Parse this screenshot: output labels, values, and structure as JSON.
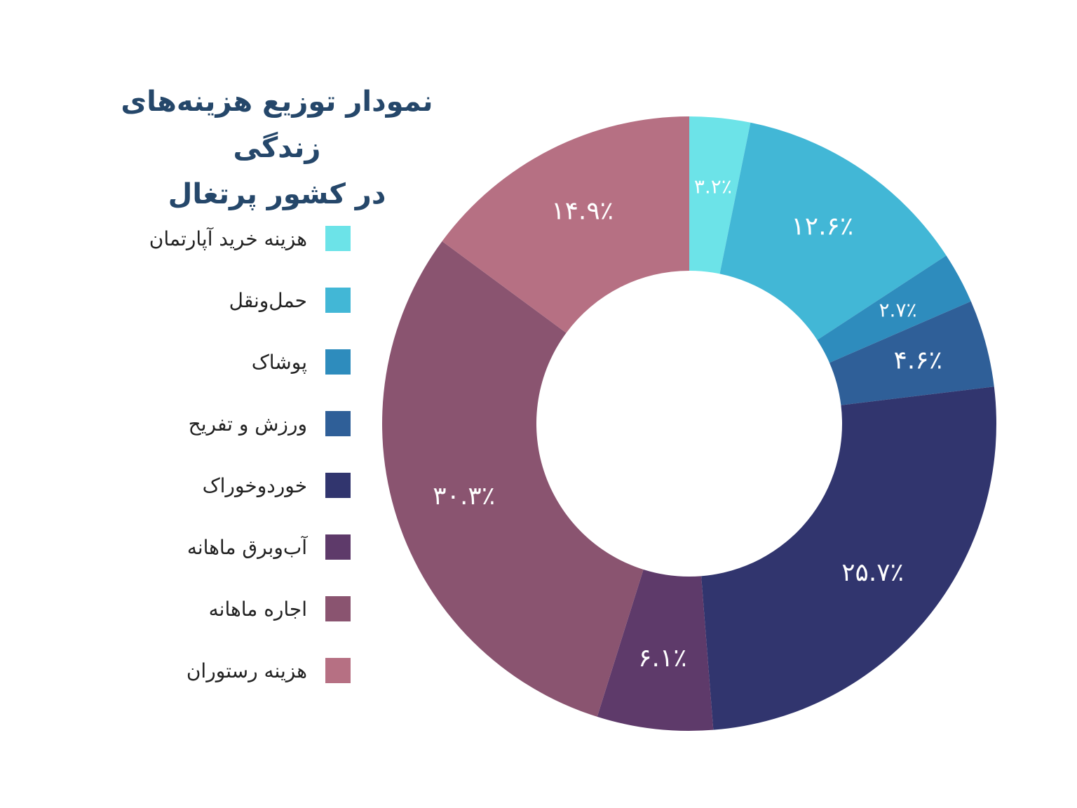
{
  "title_line1": "نمودار توزیع هزینه‌های زندگی",
  "title_line2": "در کشور پرتغال",
  "chart_data": {
    "type": "pie",
    "variant": "donut",
    "title": "نمودار توزیع هزینه‌های زندگی در کشور پرتغال",
    "legend_position": "left",
    "categories": [
      "هزینه خرید آپارتمان",
      "حمل‌ونقل",
      "پوشاک",
      "ورزش و تفریح",
      "خوردوخوراک",
      "آب‌وبرق ماهانه",
      "اجاره ماهانه",
      "هزینه رستوران"
    ],
    "values": [
      3.2,
      12.6,
      2.7,
      4.6,
      25.7,
      6.1,
      30.3,
      14.9
    ],
    "labels": [
      "۳.۲٪",
      "۱۲.۶٪",
      "۲.۷٪",
      "۴.۶٪",
      "۲۵.۷٪",
      "۶.۱٪",
      "۳۰.۳٪",
      "۱۴.۹٪"
    ],
    "colors": [
      "#6ce3e8",
      "#42b7d6",
      "#2e8cbd",
      "#2f5f98",
      "#31356e",
      "#5e3a6a",
      "#8a5470",
      "#b67083"
    ]
  }
}
